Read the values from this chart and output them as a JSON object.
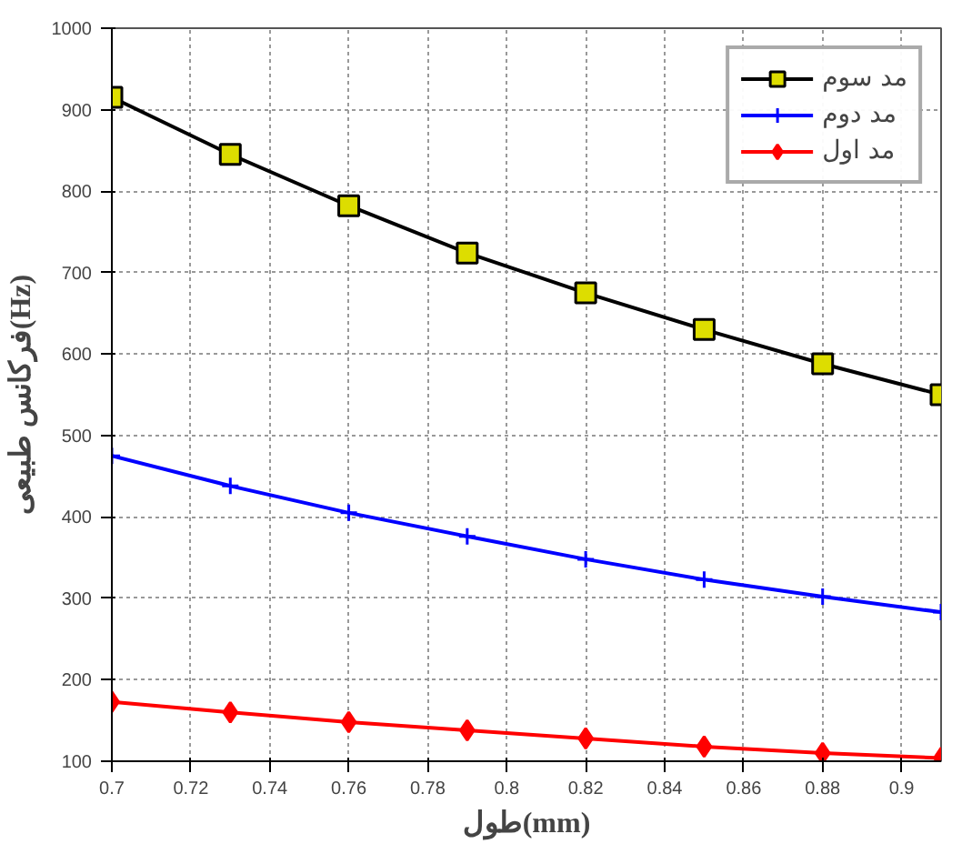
{
  "chart_data": {
    "type": "line",
    "xlabel": "طول(mm)",
    "ylabel": "فرکانس طبیعی(Hz)",
    "x": [
      0.7,
      0.73,
      0.76,
      0.79,
      0.82,
      0.85,
      0.88,
      0.91
    ],
    "series": [
      {
        "name": "مد سوم",
        "color": "#000000",
        "marker": "square",
        "values": [
          915,
          845,
          782,
          724,
          675,
          630,
          588,
          550
        ]
      },
      {
        "name": "مد دوم",
        "color": "#0000ff",
        "marker": "cross",
        "values": [
          475,
          438,
          405,
          376,
          348,
          323,
          302,
          283
        ]
      },
      {
        "name": "مد اول",
        "color": "#ff0000",
        "marker": "diamond",
        "values": [
          173,
          160,
          148,
          138,
          128,
          118,
          110,
          104
        ]
      }
    ],
    "xlim": [
      0.7,
      0.91
    ],
    "xticks": [
      0.7,
      0.72,
      0.74,
      0.76,
      0.78,
      0.8,
      0.82,
      0.84,
      0.86,
      0.88,
      0.9
    ],
    "ylim": [
      100,
      1000
    ],
    "yticks": [
      100,
      200,
      300,
      400,
      500,
      600,
      700,
      800,
      900,
      1000
    ],
    "grid": true,
    "legend": "top right",
    "line_style": "solid"
  }
}
